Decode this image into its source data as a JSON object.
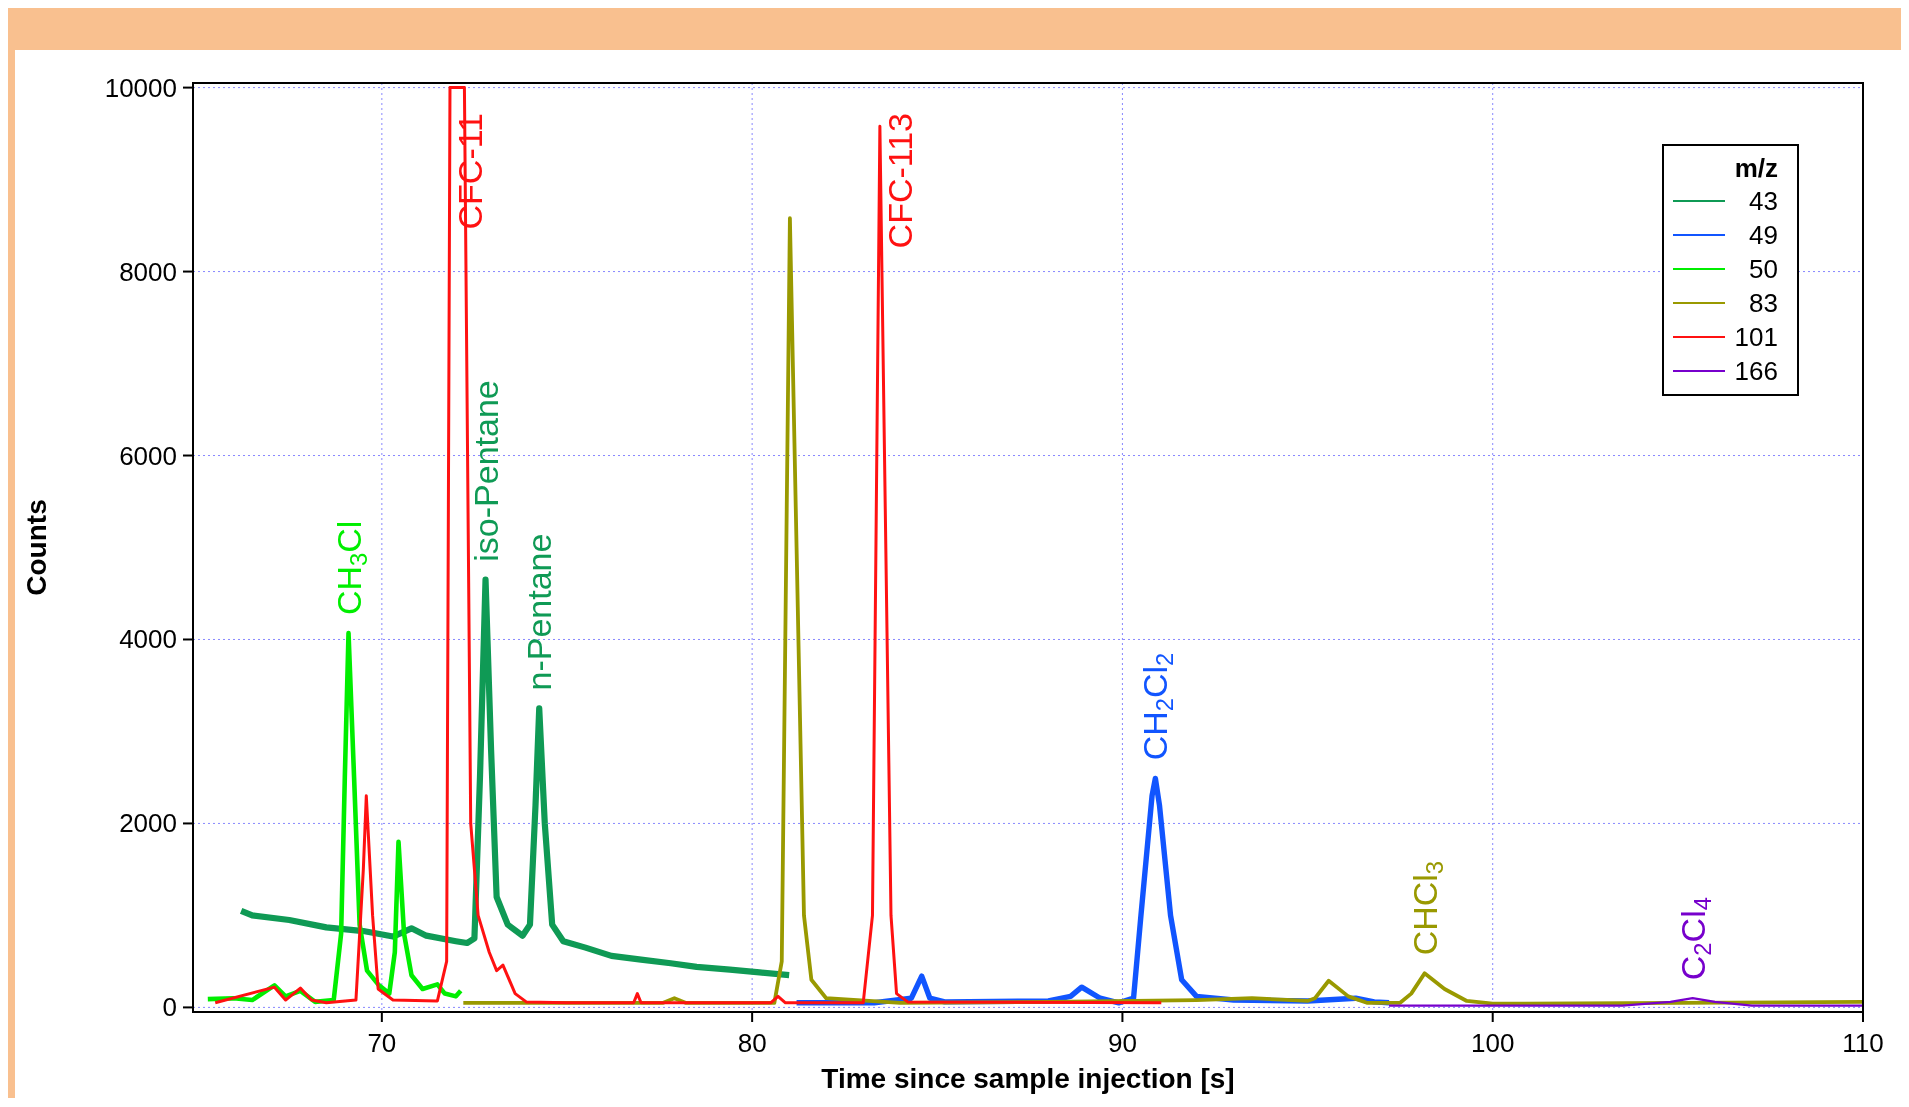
{
  "chart_data": {
    "type": "line",
    "xlabel": "Time since sample injection [s]",
    "ylabel": "Counts",
    "legend_title": "m/z",
    "legend": "top right",
    "grid": true,
    "marker": "none",
    "line_style": "solid",
    "xlim": [
      64.9,
      110
    ],
    "xticks": [
      70,
      80,
      90,
      100,
      110
    ],
    "ylim": [
      -50,
      10050
    ],
    "yticks": [
      0,
      2000,
      4000,
      6000,
      8000,
      10000
    ],
    "series": [
      {
        "name": "43",
        "color": "#0f9a55",
        "x": [
          66.2,
          66.5,
          67.5,
          68.5,
          69.5,
          70.3,
          70.8,
          71.2,
          72.0,
          72.3,
          72.5,
          72.65,
          72.8,
          72.95,
          73.1,
          73.4,
          73.8,
          74.0,
          74.15,
          74.25,
          74.4,
          74.6,
          74.9,
          75.5,
          76.2,
          77.0,
          77.8,
          78.5,
          79.4,
          80.2,
          81.0
        ],
        "values": [
          1050,
          1000,
          950,
          870,
          830,
          770,
          860,
          780,
          720,
          700,
          750,
          2500,
          4650,
          2800,
          1200,
          900,
          780,
          900,
          2200,
          3250,
          2000,
          900,
          720,
          650,
          560,
          520,
          480,
          440,
          410,
          380,
          350
        ]
      },
      {
        "name": "49",
        "color": "#1155ff",
        "x": [
          81.2,
          83.3,
          84.3,
          84.58,
          84.8,
          85.2,
          88.0,
          88.6,
          88.9,
          89.4,
          89.9,
          90.3,
          90.5,
          90.8,
          90.89,
          91.0,
          91.3,
          91.6,
          92.0,
          93.0,
          95.0,
          96.3,
          96.8,
          97.2
        ],
        "values": [
          50,
          50,
          100,
          340,
          100,
          60,
          70,
          120,
          220,
          100,
          50,
          100,
          1000,
          2300,
          2490,
          2200,
          1000,
          300,
          120,
          80,
          70,
          100,
          60,
          50
        ]
      },
      {
        "name": "50",
        "color": "#00ee00",
        "x": [
          65.3,
          66.0,
          66.5,
          67.1,
          67.4,
          67.8,
          68.2,
          68.7,
          68.9,
          69.0,
          69.1,
          69.25,
          69.4,
          69.6,
          69.9,
          70.2,
          70.35,
          70.45,
          70.6,
          70.8,
          71.1,
          71.5,
          71.7,
          72.0,
          72.13
        ],
        "values": [
          90,
          100,
          80,
          240,
          120,
          180,
          60,
          80,
          800,
          2500,
          4070,
          2500,
          900,
          400,
          250,
          150,
          600,
          1800,
          800,
          350,
          200,
          250,
          150,
          120,
          180
        ]
      },
      {
        "name": "83",
        "color": "#999900",
        "x": [
          72.2,
          77.6,
          77.9,
          78.2,
          80.6,
          80.8,
          80.95,
          81.02,
          81.2,
          81.4,
          81.6,
          82.0,
          84.0,
          88.0,
          92.0,
          93.5,
          95.0,
          95.2,
          95.57,
          96.1,
          96.6,
          97.5,
          97.8,
          98.16,
          98.7,
          99.3,
          100.0,
          105.0,
          110.0
        ],
        "values": [
          50,
          50,
          100,
          50,
          50,
          500,
          6000,
          8580,
          5000,
          1000,
          300,
          100,
          50,
          60,
          80,
          100,
          70,
          100,
          290,
          120,
          50,
          50,
          150,
          370,
          200,
          70,
          40,
          50,
          60
        ]
      },
      {
        "name": "101",
        "color": "#ff1111",
        "x": [
          65.5,
          67.1,
          67.4,
          67.8,
          68.1,
          68.5,
          69.3,
          69.5,
          69.58,
          69.75,
          69.9,
          70.3,
          71.5,
          71.75,
          71.84,
          72.23,
          72.4,
          72.6,
          72.9,
          73.1,
          73.27,
          73.6,
          73.9,
          75.0,
          76.8,
          76.9,
          77.0,
          80.5,
          80.7,
          80.9,
          83.0,
          83.25,
          83.45,
          83.75,
          83.9,
          84.2,
          91.05
        ],
        "values": [
          50,
          220,
          80,
          210,
          80,
          50,
          80,
          1500,
          2300,
          1000,
          200,
          80,
          70,
          500,
          10000,
          10000,
          2000,
          1000,
          600,
          400,
          460,
          150,
          60,
          50,
          50,
          150,
          50,
          50,
          120,
          50,
          50,
          1000,
          9580,
          1000,
          150,
          60,
          50
        ]
      },
      {
        "name": "166",
        "color": "#7700cc",
        "x": [
          97.2,
          100.0,
          103.5,
          104.8,
          105.4,
          106.0,
          107.0,
          110.0
        ],
        "values": [
          20,
          20,
          20,
          60,
          100,
          60,
          20,
          20
        ]
      }
    ],
    "annotations": [
      {
        "text": "CH$_{3}$Cl",
        "x": 69.1,
        "y": 4070
      },
      {
        "text": "CFC-11",
        "x": 71.84,
        "y": 10000
      },
      {
        "text": "iso-Pentane",
        "x": 72.8,
        "y": 4650
      },
      {
        "text": "n-Pentane",
        "x": 74.25,
        "y": 3250
      },
      {
        "text": "CFC-113",
        "x": 83.45,
        "y": 9580
      },
      {
        "text": "CH$_{2}$Cl$_{2}$",
        "x": 90.89,
        "y": 2490
      },
      {
        "text": "CHCl$_{3}$",
        "x": 98.16,
        "y": 370
      },
      {
        "text": "C$_{2}$Cl$_{4}$",
        "x": 105.4,
        "y": 100
      }
    ]
  }
}
